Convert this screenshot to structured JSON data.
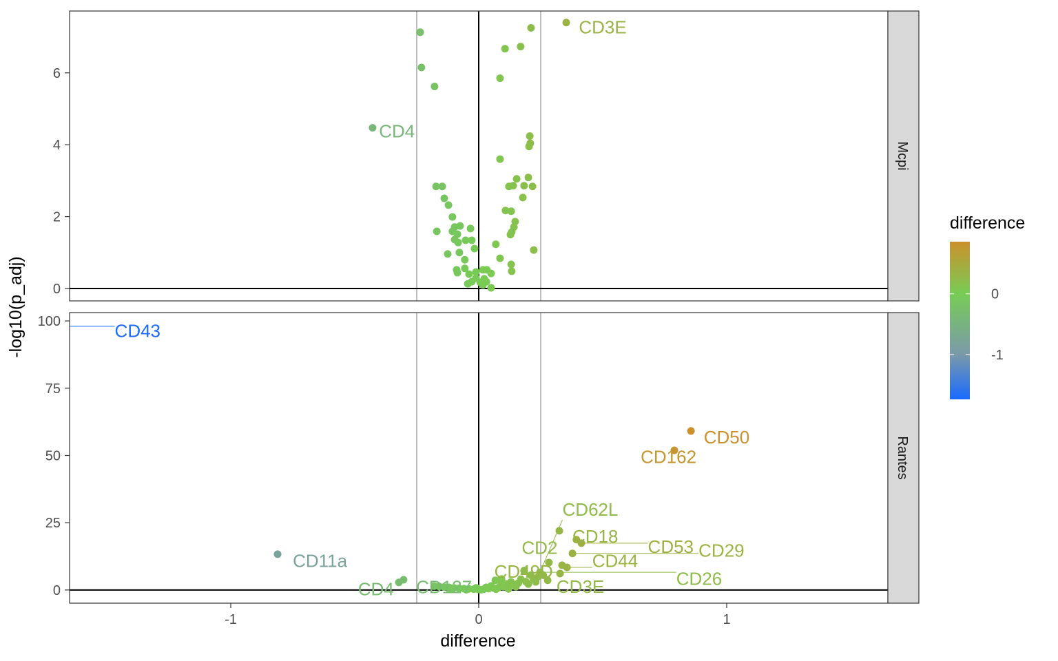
{
  "chart_data": {
    "type": "scatter",
    "title": "",
    "xlabel": "difference",
    "ylabel": "-log10(p_adj)",
    "xlim": [
      -1.65,
      1.65
    ],
    "x_ticks": [
      -1,
      0,
      1
    ],
    "x_tick_labels": [
      "-1",
      "0",
      "1"
    ],
    "reference_lines": {
      "vertical": [
        -0.25,
        0.25
      ],
      "vertical_zero": 0,
      "horizontal_zero": 0
    },
    "legend": {
      "title": "difference",
      "placement": "right",
      "type": "colorbar",
      "range": [
        -1.74,
        0.86
      ],
      "ticks": [
        0,
        -1
      ],
      "tick_labels": [
        "0",
        "-1"
      ],
      "color_stops": [
        {
          "value": -1.74,
          "color": "#1a6aff"
        },
        {
          "value": -1,
          "color": "#7a9aaa"
        },
        {
          "value": 0,
          "color": "#77cc55"
        },
        {
          "value": 0.86,
          "color": "#cc902c"
        }
      ]
    },
    "panels": [
      {
        "strip": "Mcpi",
        "ylim": [
          -0.345,
          7.72
        ],
        "y_ticks": [
          0,
          2,
          4,
          6
        ],
        "y_tick_labels": [
          "0",
          "2",
          "4",
          "6"
        ],
        "points": [
          [
            -0.236,
            7.13
          ],
          [
            -0.231,
            6.15
          ],
          [
            -0.178,
            5.62
          ],
          [
            -0.428,
            4.47
          ],
          [
            0.353,
            7.4
          ],
          [
            0.211,
            7.25
          ],
          [
            0.106,
            6.67
          ],
          [
            0.169,
            6.73
          ],
          [
            0.086,
            5.85
          ],
          [
            0.206,
            4.24
          ],
          [
            0.208,
            4.04
          ],
          [
            0.203,
            3.95
          ],
          [
            0.086,
            3.6
          ],
          [
            0.153,
            3.05
          ],
          [
            0.2,
            3.09
          ],
          [
            0.122,
            2.84
          ],
          [
            0.139,
            2.86
          ],
          [
            0.183,
            2.86
          ],
          [
            0.217,
            2.84
          ],
          [
            0.178,
            2.53
          ],
          [
            -0.172,
            2.84
          ],
          [
            -0.147,
            2.84
          ],
          [
            -0.139,
            2.51
          ],
          [
            -0.122,
            2.32
          ],
          [
            -0.106,
            1.99
          ],
          [
            -0.169,
            1.59
          ],
          [
            -0.075,
            1.74
          ],
          [
            -0.097,
            1.71
          ],
          [
            -0.033,
            1.67
          ],
          [
            -0.106,
            1.59
          ],
          [
            -0.086,
            1.51
          ],
          [
            -0.097,
            1.36
          ],
          [
            -0.083,
            1.28
          ],
          [
            -0.053,
            1.34
          ],
          [
            -0.028,
            1.34
          ],
          [
            -0.017,
            1.11
          ],
          [
            -0.078,
            1.0
          ],
          [
            -0.125,
            0.96
          ],
          [
            -0.056,
            0.8
          ],
          [
            -0.089,
            0.52
          ],
          [
            -0.086,
            0.44
          ],
          [
            -0.056,
            0.56
          ],
          [
            0.069,
            1.23
          ],
          [
            0.086,
            0.84
          ],
          [
            0.108,
            2.17
          ],
          [
            0.131,
            2.15
          ],
          [
            0.147,
            1.86
          ],
          [
            0.142,
            1.71
          ],
          [
            0.133,
            1.57
          ],
          [
            0.128,
            1.5
          ],
          [
            0.222,
            1.07
          ],
          [
            0.131,
            0.67
          ],
          [
            0.133,
            0.48
          ],
          [
            -0.039,
            0.4
          ],
          [
            -0.011,
            0.29
          ],
          [
            0.017,
            0.52
          ],
          [
            0.033,
            0.52
          ],
          [
            0.05,
            0.42
          ],
          [
            -0.028,
            0.19
          ],
          [
            0.006,
            0.17
          ],
          [
            0.022,
            0.27
          ],
          [
            0.05,
            0.02
          ],
          [
            0.031,
            0.19
          ],
          [
            -0.044,
            0.13
          ],
          [
            -0.011,
            0.46
          ],
          [
            0.017,
            0.1
          ]
        ],
        "labels": [
          {
            "text": "CD3E",
            "x": 0.353,
            "y": 7.4,
            "label_x": 0.5,
            "label_y": 7.1
          },
          {
            "text": "CD4",
            "x": -0.428,
            "y": 4.47,
            "label_x": -0.33,
            "label_y": 4.2
          }
        ]
      },
      {
        "strip": "Rantes",
        "ylim": [
          -4.9,
          103.1
        ],
        "y_ticks": [
          0,
          25,
          50,
          75,
          100
        ],
        "y_tick_labels": [
          "0",
          "25",
          "50",
          "75",
          "100"
        ],
        "points": [
          [
            0.856,
            59.1
          ],
          [
            0.789,
            51.9
          ],
          [
            -0.811,
            13.3
          ],
          [
            0.325,
            22.0
          ],
          [
            0.394,
            18.7
          ],
          [
            0.414,
            17.4
          ],
          [
            0.378,
            13.6
          ],
          [
            0.283,
            10.2
          ],
          [
            0.336,
            9.2
          ],
          [
            0.356,
            8.4
          ],
          [
            0.328,
            6.1
          ],
          [
            0.247,
            6.6
          ],
          [
            0.183,
            7.2
          ],
          [
            0.092,
            4.1
          ],
          [
            0.067,
            3.6
          ],
          [
            0.239,
            4.9
          ],
          [
            0.278,
            3.6
          ],
          [
            -0.303,
            3.8
          ],
          [
            -0.322,
            2.8
          ],
          [
            -1.74,
            98
          ],
          [
            0.21,
            5.5
          ],
          [
            0.22,
            4.2
          ],
          [
            0.19,
            3.1
          ],
          [
            0.16,
            2.6
          ],
          [
            0.14,
            2.0
          ],
          [
            0.12,
            1.6
          ],
          [
            0.1,
            1.2
          ],
          [
            0.08,
            0.9
          ],
          [
            0.06,
            0.7
          ],
          [
            0.04,
            0.5
          ],
          [
            0.02,
            0.3
          ],
          [
            0.0,
            0.2
          ],
          [
            -0.02,
            0.3
          ],
          [
            -0.04,
            0.4
          ],
          [
            -0.06,
            0.5
          ],
          [
            -0.08,
            0.6
          ],
          [
            -0.1,
            0.8
          ],
          [
            -0.12,
            1.0
          ],
          [
            -0.14,
            1.1
          ],
          [
            -0.16,
            1.3
          ],
          [
            -0.18,
            1.4
          ],
          [
            0.17,
            4.0
          ],
          [
            0.23,
            3.0
          ],
          [
            0.26,
            5.5
          ],
          [
            0.13,
            3.0
          ],
          [
            0.11,
            2.2
          ],
          [
            0.05,
            1.5
          ],
          [
            0.03,
            1.0
          ],
          [
            -0.01,
            0.8
          ],
          [
            0.09,
            1.9
          ],
          [
            0.15,
            1.2
          ],
          [
            0.2,
            2.2
          ],
          [
            0.07,
            0.3
          ],
          [
            -0.05,
            0.1
          ],
          [
            -0.11,
            0.2
          ],
          [
            0.01,
            0.1
          ],
          [
            0.12,
            0.4
          ]
        ],
        "labels": [
          {
            "text": "CD43",
            "x": -1.74,
            "y": 98,
            "label_x": -1.57,
            "label_y": 94
          },
          {
            "text": "CD50",
            "x": 0.856,
            "y": 59.1,
            "label_x": 1.0,
            "label_y": 54.5
          },
          {
            "text": "CD162",
            "x": 0.789,
            "y": 51.9,
            "label_x": 0.96,
            "label_y": 47.2
          },
          {
            "text": "CD11a",
            "x": -0.811,
            "y": 13.3,
            "label_x": -0.64,
            "label_y": 8.6
          },
          {
            "text": "CD18",
            "x": 0.325,
            "y": 22.0,
            "label_x": 0.47,
            "label_y": 17.6
          },
          {
            "text": "CD53",
            "x": 0.414,
            "y": 17.4,
            "label_x": 0.58,
            "label_y": 13.8
          },
          {
            "text": "CD29",
            "x": 0.378,
            "y": 13.6,
            "label_x": 0.59,
            "label_y": 12.4
          },
          {
            "text": "CD44",
            "x": 0.356,
            "y": 8.4,
            "label_x": 0.55,
            "label_y": 8.6
          },
          {
            "text": "CD49D",
            "x": 0.328,
            "y": 6.1,
            "label_x": 0.57,
            "label_y": 4.6
          },
          {
            "text": "CD2",
            "x": 0.283,
            "y": 10.2,
            "label_x": 0.44,
            "label_y": 5.2
          },
          {
            "text": "CD26",
            "x": 0.247,
            "y": 6.6,
            "label_x": 0.5,
            "label_y": 1.9
          },
          {
            "text": "CD62L",
            "x": 0.239,
            "y": 4.9,
            "label_x": 0.45,
            "label_y": 3.0
          },
          {
            "text": "CD3E",
            "x": 0.278,
            "y": 3.6,
            "label_x": 0.41,
            "label_y": -1.0
          },
          {
            "text": "CD127",
            "x": -0.303,
            "y": 3.8,
            "label_x": -0.14,
            "label_y": -1.2
          },
          {
            "text": "CD4",
            "x": -0.322,
            "y": 2.8,
            "label_x": -0.22,
            "label_y": -2.0
          }
        ]
      }
    ]
  }
}
